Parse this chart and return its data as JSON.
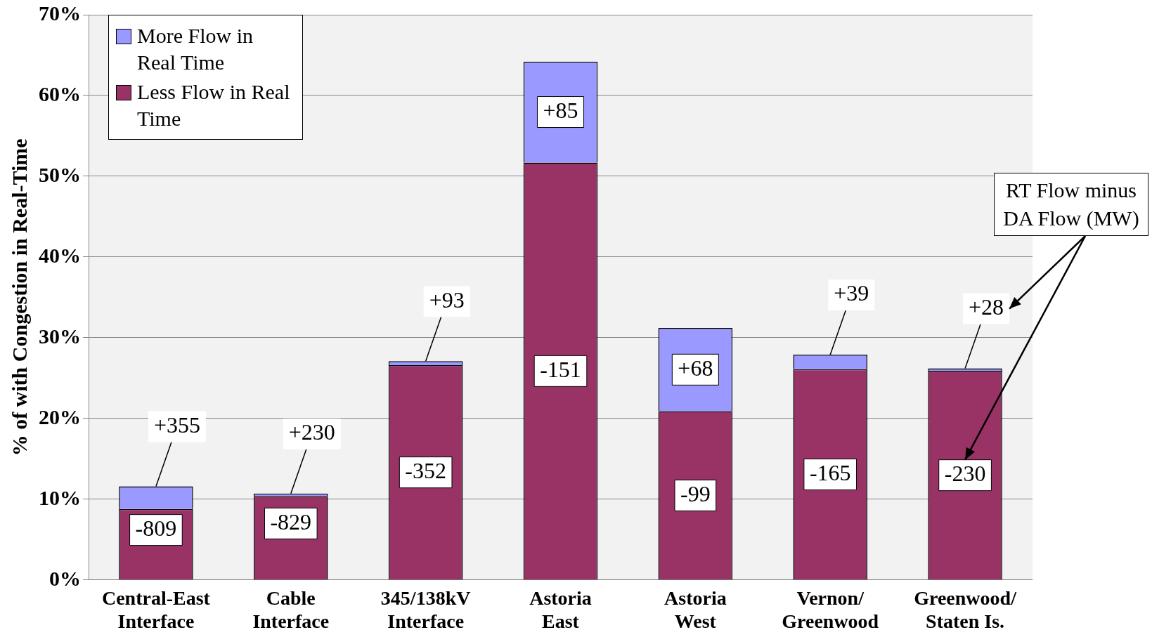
{
  "chart_data": {
    "type": "bar",
    "stacked": true,
    "ylabel": "% of with Congestion in Real-Time",
    "categories": [
      "Central-East\nInterface",
      "Cable\nInterface",
      "345/138kV\nInterface",
      "Astoria\nEast",
      "Astoria\nWest",
      "Vernon/\nGreenwood",
      "Greenwood/\nStaten Is."
    ],
    "series": [
      {
        "name": "Less Flow in Real Time",
        "color": "#993366",
        "values": [
          8.8,
          10.4,
          26.6,
          51.7,
          20.9,
          26.1,
          25.9
        ]
      },
      {
        "name": "More Flow in Real Time",
        "color": "#9999ff",
        "values": [
          2.8,
          0.3,
          0.5,
          12.5,
          10.3,
          1.8,
          0.3
        ]
      }
    ],
    "ylim": [
      0,
      70
    ],
    "yticks": [
      {
        "value": 0,
        "label": "0%"
      },
      {
        "value": 10,
        "label": "10%"
      },
      {
        "value": 20,
        "label": "20%"
      },
      {
        "value": 30,
        "label": "30%"
      },
      {
        "value": 40,
        "label": "40%"
      },
      {
        "value": 50,
        "label": "50%"
      },
      {
        "value": 60,
        "label": "60%"
      },
      {
        "value": 70,
        "label": "70%"
      }
    ],
    "grid": "y",
    "legend": "top left",
    "annotations": [
      {
        "text": "+355",
        "x": "Central-East\nInterface",
        "y": 11.6
      },
      {
        "text": "+230",
        "x": "Cable\nInterface",
        "y": 10.7
      },
      {
        "text": "+93",
        "x": "345/138kV\nInterface",
        "y": 27.1
      },
      {
        "text": "+39",
        "x": "Vernon/\nGreenwood",
        "y": 27.9
      },
      {
        "text": "+28",
        "x": "Greenwood/\nStaten Is.",
        "y": 26.2
      },
      "-809",
      "-829",
      "-352",
      "-151",
      "-99",
      "-165",
      "-230",
      "+85",
      "+68",
      "RT Flow minus DA Flow (MW)"
    ]
  }
}
